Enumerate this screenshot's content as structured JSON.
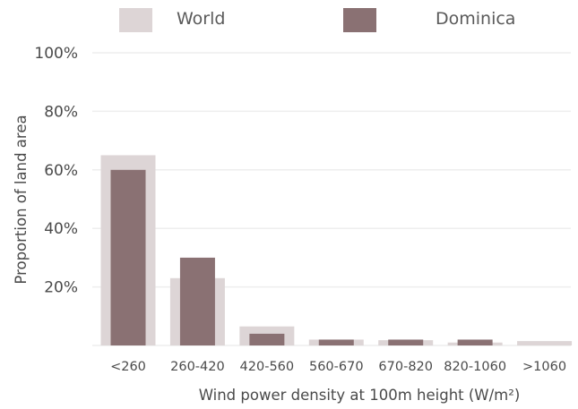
{
  "chart_data": {
    "type": "bar",
    "xlabel": "Wind power density at 100m height (W/m²)",
    "ylabel": "Proportion of land area",
    "categories": [
      "<260",
      "260-420",
      "420-560",
      "560-670",
      "670-820",
      "820-1060",
      ">1060"
    ],
    "series": [
      {
        "name": "World",
        "values": [
          65,
          23,
          6.5,
          2,
          1.8,
          1,
          1.5
        ],
        "color": "#ddd5d6"
      },
      {
        "name": "Dominica",
        "values": [
          60,
          30,
          4,
          2,
          2,
          2,
          0
        ],
        "color": "#8a7173"
      }
    ],
    "ylim": [
      0,
      100
    ],
    "yticks": [
      20,
      40,
      60,
      80,
      100
    ],
    "ytick_labels": [
      "20%",
      "40%",
      "60%",
      "80%",
      "100%"
    ],
    "grid": true,
    "legend_position": "top"
  }
}
